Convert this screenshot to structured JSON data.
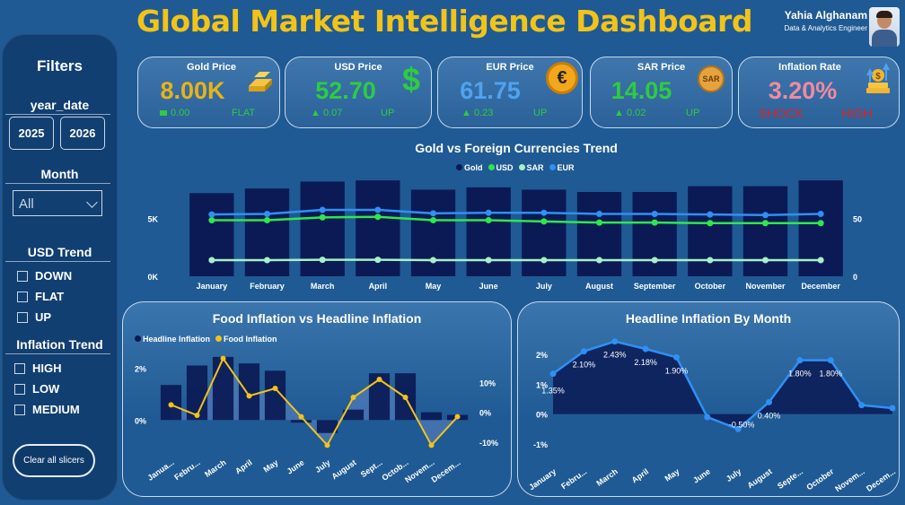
{
  "header": {
    "title": "Global Market Intelligence Dashboard",
    "user_name": "Yahia Alghanam",
    "user_role": "Data & Analytics Engineer"
  },
  "filters": {
    "title": "Filters",
    "year_label": "year_date",
    "years": [
      "2025",
      "2026"
    ],
    "month_label": "Month",
    "month_value": "All",
    "usd_trend_label": "USD Trend",
    "usd_trend_options": [
      "DOWN",
      "FLAT",
      "UP"
    ],
    "inflation_trend_label": "Inflation Trend",
    "inflation_trend_options": [
      "HIGH",
      "LOW",
      "MEDIUM"
    ],
    "clear_label": "Clear all slicers"
  },
  "kpis": {
    "gold": {
      "label": "Gold Price",
      "value": "8.00K",
      "change": "0.00",
      "trend": "FLAT"
    },
    "usd": {
      "label": "USD Price",
      "value": "52.70",
      "change": "▲ 0.07",
      "trend": "UP"
    },
    "eur": {
      "label": "EUR Price",
      "value": "61.75",
      "change": "▲ 0.23",
      "trend": "UP"
    },
    "sar": {
      "label": "SAR Price",
      "value": "14.05",
      "change": "▲ 0.02",
      "trend": "UP"
    },
    "inflation": {
      "label": "Inflation Rate",
      "value": "3.20%",
      "status": "SHOCK",
      "level": "HIGH"
    }
  },
  "colors": {
    "accent": "#f2c318",
    "gold_value": "#e8b317",
    "green": "#2ecc40",
    "eur_blue": "#4ea3f0",
    "inflation_pink": "#f08aa0",
    "shock_red": "#e02020",
    "bar_navy": "#0b1a55",
    "usd_line": "#2ee84a",
    "sar_line": "#a8f0c8",
    "eur_line": "#2f90f5",
    "food_line": "#f2c318"
  },
  "chart_data": [
    {
      "type": "bar",
      "title": "Gold vs Foreign Currencies Trend",
      "categories": [
        "January",
        "February",
        "March",
        "April",
        "May",
        "June",
        "July",
        "August",
        "September",
        "October",
        "November",
        "December"
      ],
      "legend": [
        "Gold",
        "USD",
        "SAR",
        "EUR"
      ],
      "y_left_ticks": [
        "0K",
        "5K"
      ],
      "y_left_lim": [
        0,
        8000
      ],
      "y_right_ticks": [
        "0",
        "50"
      ],
      "y_right_lim": [
        0,
        80
      ],
      "series": [
        {
          "name": "Gold",
          "kind": "bar",
          "values": [
            7200,
            7600,
            8200,
            8300,
            7500,
            7700,
            7500,
            7300,
            7300,
            7800,
            7800,
            8300
          ]
        },
        {
          "name": "USD",
          "kind": "line",
          "values": [
            48.5,
            48.5,
            51,
            51.5,
            48.5,
            48.5,
            47.5,
            46.5,
            46.5,
            46,
            46,
            46
          ]
        },
        {
          "name": "SAR",
          "kind": "line",
          "values": [
            14,
            14,
            14.3,
            14.3,
            14,
            14,
            14,
            14,
            14,
            14,
            14,
            14
          ]
        },
        {
          "name": "EUR",
          "kind": "line",
          "values": [
            53.5,
            54,
            57.5,
            57.5,
            54.5,
            55,
            55,
            54,
            54,
            53.5,
            53,
            54
          ]
        }
      ]
    },
    {
      "type": "bar",
      "title": "Food Inflation vs Headline Inflation",
      "categories": [
        "January",
        "February",
        "March",
        "April",
        "May",
        "June",
        "July",
        "August",
        "September",
        "October",
        "November",
        "December"
      ],
      "legend": [
        "Headline Inflation",
        "Food Inflation"
      ],
      "y_left_ticks": [
        "0%",
        "2%"
      ],
      "y_left_lim": [
        -1.2,
        2.6
      ],
      "y_right_ticks": [
        "-10%",
        "0%",
        "10%"
      ],
      "y_right_lim": [
        -13,
        20
      ],
      "series": [
        {
          "name": "Headline Inflation",
          "kind": "bar",
          "values": [
            1.35,
            2.1,
            2.43,
            2.18,
            1.9,
            -0.1,
            -0.5,
            0.4,
            1.8,
            1.8,
            0.3,
            0.2
          ]
        },
        {
          "name": "Food Inflation",
          "kind": "line",
          "values": [
            2.5,
            -1,
            18,
            5.5,
            8,
            -1.5,
            -11,
            5,
            11,
            5,
            -11,
            -1.5
          ]
        }
      ]
    },
    {
      "type": "area",
      "title": "Headline Inflation By Month",
      "categories": [
        "January",
        "February",
        "March",
        "April",
        "May",
        "June",
        "July",
        "August",
        "September",
        "October",
        "November",
        "December"
      ],
      "y_ticks": [
        "-1%",
        "0%",
        "1%",
        "2%"
      ],
      "ylim": [
        -1.3,
        2.6
      ],
      "series": [
        {
          "name": "Headline Inflation",
          "values": [
            1.35,
            2.1,
            2.43,
            2.18,
            1.9,
            -0.1,
            -0.5,
            0.4,
            1.8,
            1.8,
            0.3,
            0.2
          ]
        }
      ],
      "data_labels": [
        "1.35%",
        "2.10%",
        "2.43%",
        "2.18%",
        "1.90%",
        "",
        "-0.50%",
        "0.40%",
        "1.80%",
        "1.80%",
        "",
        ""
      ]
    }
  ]
}
